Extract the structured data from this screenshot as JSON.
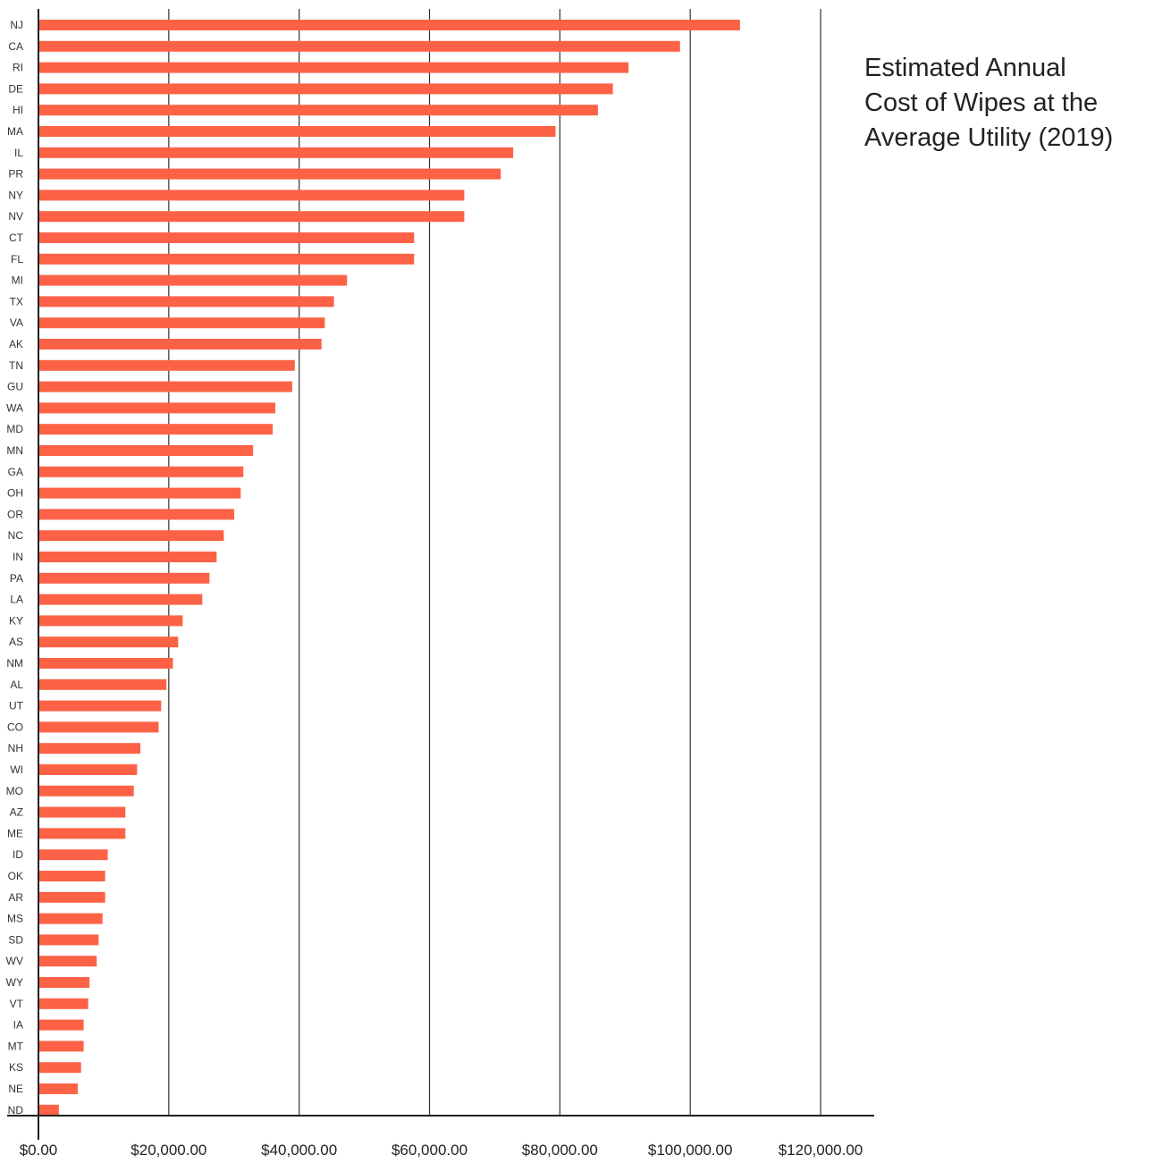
{
  "chart_data": {
    "type": "bar",
    "orientation": "horizontal",
    "title": "Estimated Annual Cost of Wipes at the Average Utility (2019)",
    "xlabel": "",
    "ylabel": "",
    "xlim": [
      0,
      120000
    ],
    "grid": true,
    "legend": "none",
    "bar_color": "#fd6247",
    "x_ticks": [
      0,
      20000,
      40000,
      60000,
      80000,
      100000,
      120000
    ],
    "x_tick_labels": [
      "$0.00",
      "$20,000.00",
      "$40,000.00",
      "$60,000.00",
      "$80,000.00",
      "$100,000.00",
      "$120,000.00"
    ],
    "categories": [
      "NJ",
      "CA",
      "RI",
      "DE",
      "HI",
      "MA",
      "IL",
      "PR",
      "NY",
      "NV",
      "CT",
      "FL",
      "MI",
      "TX",
      "VA",
      "AK",
      "TN",
      "GU",
      "WA",
      "MD",
      "MN",
      "GA",
      "OH",
      "OR",
      "NC",
      "IN",
      "PA",
      "LA",
      "KY",
      "AS",
      "NM",
      "AL",
      "UT",
      "CO",
      "NH",
      "WI",
      "MO",
      "AZ",
      "ME",
      "ID",
      "OK",
      "AR",
      "MS",
      "SD",
      "WV",
      "WY",
      "VT",
      "IA",
      "MT",
      "KS",
      "NE",
      "ND"
    ],
    "values": [
      107500,
      98300,
      90400,
      88000,
      85700,
      79200,
      72700,
      70800,
      65200,
      65200,
      57500,
      57500,
      47200,
      45200,
      43800,
      43300,
      39200,
      38800,
      36200,
      35800,
      32800,
      31300,
      30900,
      29900,
      28300,
      27200,
      26100,
      25000,
      22000,
      21300,
      20500,
      19500,
      18700,
      18300,
      15500,
      15000,
      14500,
      13200,
      13200,
      10500,
      10100,
      10100,
      9700,
      9100,
      8800,
      7700,
      7500,
      6800,
      6800,
      6400,
      5900,
      3000
    ]
  }
}
